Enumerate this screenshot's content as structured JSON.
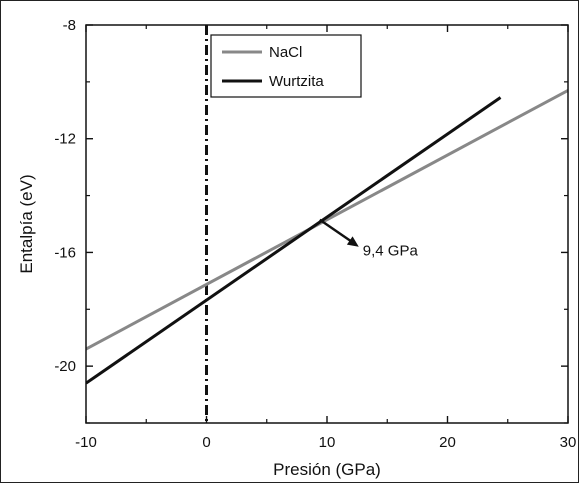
{
  "chart_data": {
    "type": "line",
    "title": "",
    "xlabel": "Presión (GPa)",
    "ylabel": "Entalpía (eV)",
    "xlim": [
      -10,
      30
    ],
    "ylim": [
      -22,
      -8
    ],
    "xticks": [
      -10,
      0,
      10,
      20,
      30
    ],
    "yticks": [
      -8,
      -12,
      -16,
      -20
    ],
    "xtick_labels": [
      "-10",
      "0",
      "10",
      "20",
      "30"
    ],
    "ytick_labels": [
      "-8",
      "-12",
      "-16",
      "-20"
    ],
    "grid": false,
    "legend_position": "top-left",
    "series": [
      {
        "name": "NaCl",
        "color": "#888888",
        "x": [
          -10,
          30
        ],
        "y": [
          -19.4,
          -10.3
        ]
      },
      {
        "name": "Wurtzita",
        "color": "#111111",
        "x": [
          -10,
          24.4
        ],
        "y": [
          -20.6,
          -10.55
        ]
      }
    ],
    "vertical_reference_line": {
      "x": 0,
      "style": "dash-dot",
      "color": "#111111"
    },
    "annotation": {
      "text": "9,4 GPa",
      "point_x": 9.4,
      "point_y": -14.85
    }
  }
}
